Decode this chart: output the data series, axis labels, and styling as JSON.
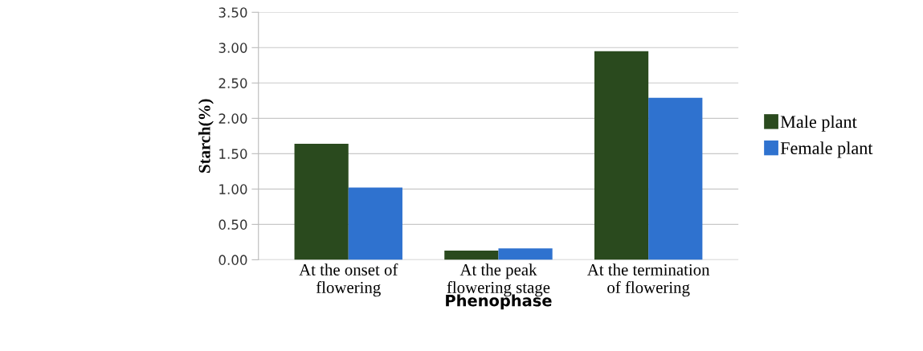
{
  "chart_data": {
    "type": "bar",
    "xlabel": "Phenophase",
    "ylabel": "Starch(%)",
    "categories": [
      "At the onset of\nflowering",
      "At the peak\nflowering stage",
      "At the termination\nof flowering"
    ],
    "series": [
      {
        "name": "Male plant",
        "color": "#2a4a1e",
        "values": [
          1.64,
          0.13,
          2.95
        ]
      },
      {
        "name": "Female plant",
        "color": "#2f72cf",
        "values": [
          1.02,
          0.16,
          2.29
        ]
      }
    ],
    "ylim": [
      0,
      3.5
    ],
    "yticks": [
      {
        "value": 0,
        "label": "0.00"
      },
      {
        "value": 0.5,
        "label": "0.50"
      },
      {
        "value": 1,
        "label": "1.00"
      },
      {
        "value": 1.5,
        "label": "1.50"
      },
      {
        "value": 2,
        "label": "2.00"
      },
      {
        "value": 2.5,
        "label": "2.50"
      },
      {
        "value": 3,
        "label": "3.00"
      },
      {
        "value": 3.5,
        "label": "3.50"
      }
    ],
    "grid": "y",
    "legend": "right"
  }
}
